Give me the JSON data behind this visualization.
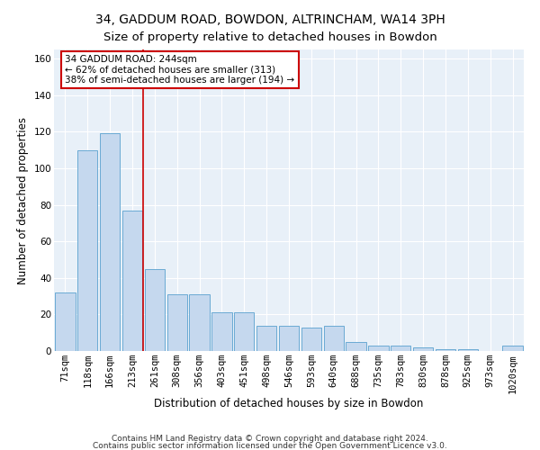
{
  "title": "34, GADDUM ROAD, BOWDON, ALTRINCHAM, WA14 3PH",
  "subtitle": "Size of property relative to detached houses in Bowdon",
  "xlabel": "Distribution of detached houses by size in Bowdon",
  "ylabel": "Number of detached properties",
  "categories": [
    "71sqm",
    "118sqm",
    "166sqm",
    "213sqm",
    "261sqm",
    "308sqm",
    "356sqm",
    "403sqm",
    "451sqm",
    "498sqm",
    "546sqm",
    "593sqm",
    "640sqm",
    "688sqm",
    "735sqm",
    "783sqm",
    "830sqm",
    "878sqm",
    "925sqm",
    "973sqm",
    "1020sqm"
  ],
  "values": [
    32,
    110,
    119,
    77,
    45,
    31,
    31,
    21,
    21,
    14,
    14,
    13,
    14,
    5,
    3,
    3,
    2,
    1,
    1,
    0,
    3
  ],
  "bar_color": "#c5d8ee",
  "bar_edge_color": "#6aaad4",
  "vline_x_index": 3,
  "vline_color": "#cc0000",
  "annotation_text": "34 GADDUM ROAD: 244sqm\n← 62% of detached houses are smaller (313)\n38% of semi-detached houses are larger (194) →",
  "annotation_box_color": "#cc0000",
  "annotation_text_color": "#000000",
  "ylim": [
    0,
    165
  ],
  "yticks": [
    0,
    20,
    40,
    60,
    80,
    100,
    120,
    140,
    160
  ],
  "bg_color": "#e8f0f8",
  "footer_line1": "Contains HM Land Registry data © Crown copyright and database right 2024.",
  "footer_line2": "Contains public sector information licensed under the Open Government Licence v3.0.",
  "title_fontsize": 10,
  "xlabel_fontsize": 8.5,
  "ylabel_fontsize": 8.5,
  "tick_fontsize": 7.5,
  "footer_fontsize": 6.5
}
